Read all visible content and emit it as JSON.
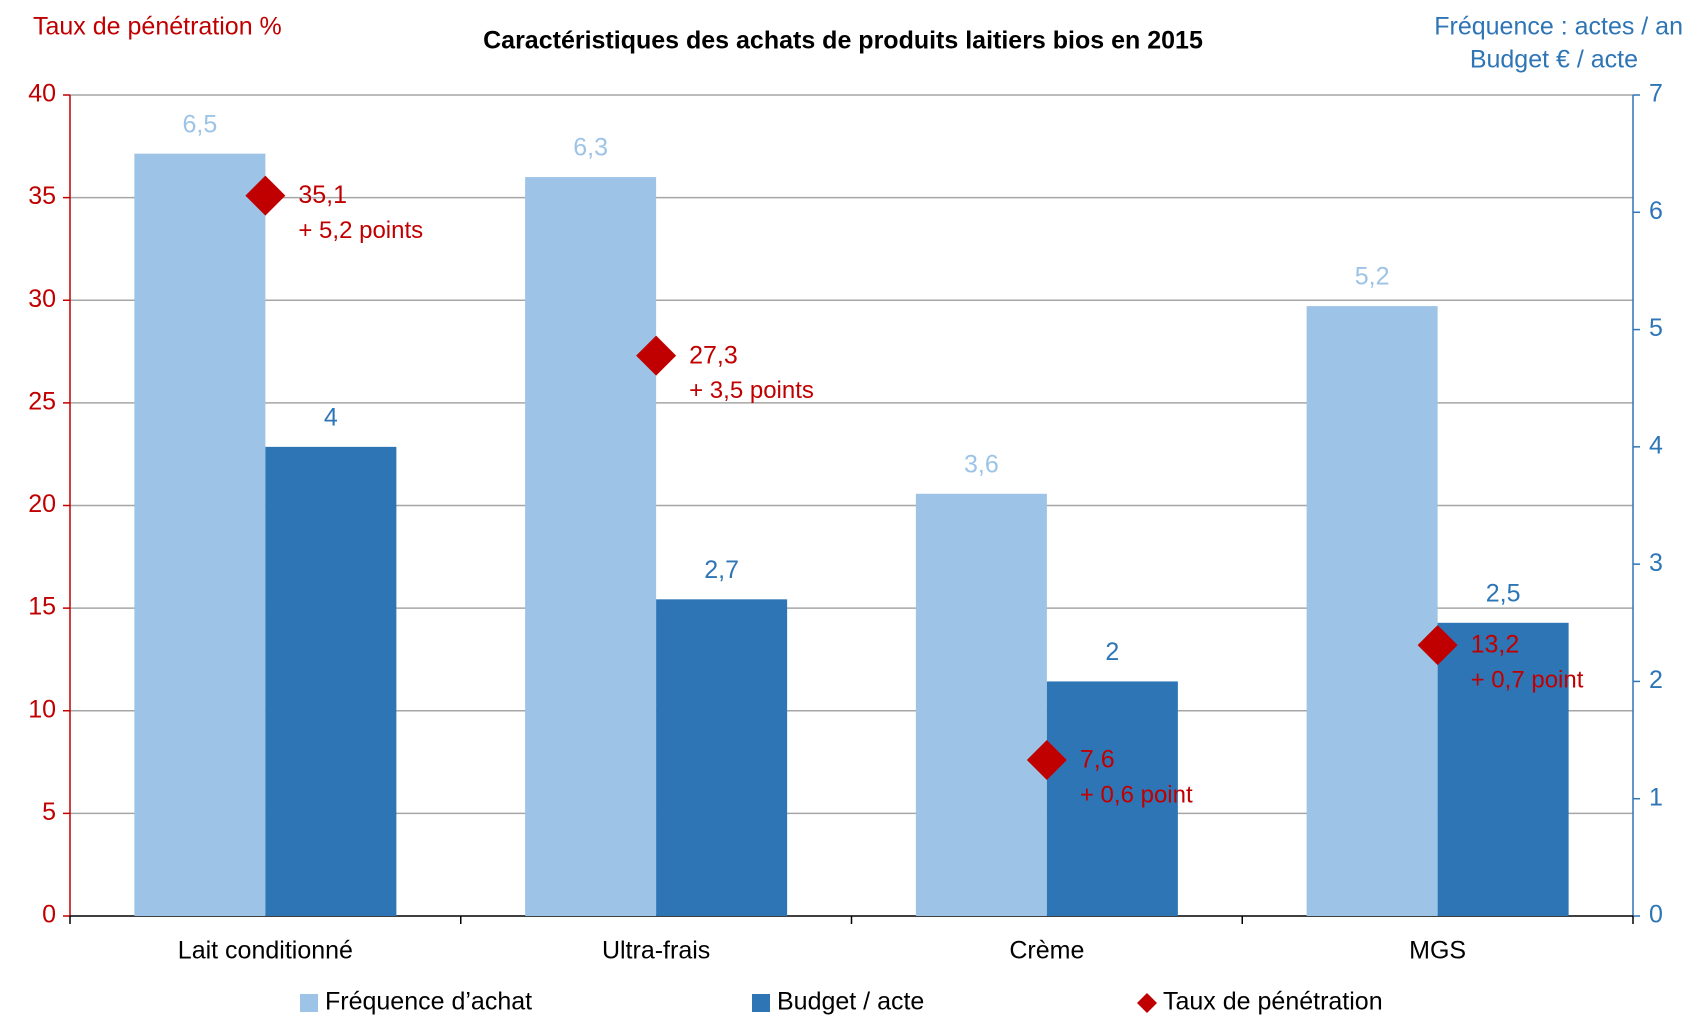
{
  "chart_data": {
    "type": "bar",
    "title": "Caractéristiques des achats de produits laitiers bios en 2015",
    "y_label": "Taux de pénétration %",
    "y2_label": [
      "Fréquence : actes / an",
      "Budget € / acte"
    ],
    "categories": [
      "Lait conditionné",
      "Ultra-frais",
      "Crème",
      "MGS"
    ],
    "series": [
      {
        "name": "Fréquence d’achat",
        "color": "#9dc3e6",
        "axis": "y2",
        "kind": "bar",
        "values": [
          6.5,
          6.3,
          3.6,
          5.2
        ],
        "value_labels": [
          "6,5",
          "6,3",
          "3,6",
          "5,2"
        ]
      },
      {
        "name": "Budget / acte",
        "color": "#2e75b6",
        "axis": "y2",
        "kind": "bar",
        "values": [
          4,
          2.7,
          2,
          2.5
        ],
        "value_labels": [
          "4",
          "2,7",
          "2",
          "2,5"
        ]
      },
      {
        "name": "Taux de pénétration",
        "color": "#c00000",
        "axis": "y",
        "kind": "diamond",
        "values": [
          35.1,
          27.3,
          7.6,
          13.2
        ],
        "value_labels": [
          "35,1",
          "27,3",
          "7,6",
          "13,2"
        ],
        "annotations": [
          "+ 5,2 points",
          "+ 3,5 points",
          "+ 0,6 point",
          "+ 0,7 point"
        ]
      }
    ],
    "ylim": [
      0,
      40
    ],
    "yticks": [
      0,
      5,
      10,
      15,
      20,
      25,
      30,
      35,
      40
    ],
    "y2lim": [
      0,
      7
    ],
    "y2ticks": [
      0,
      1,
      2,
      3,
      4,
      5,
      6,
      7
    ],
    "grid": true,
    "legend": "bottom"
  }
}
